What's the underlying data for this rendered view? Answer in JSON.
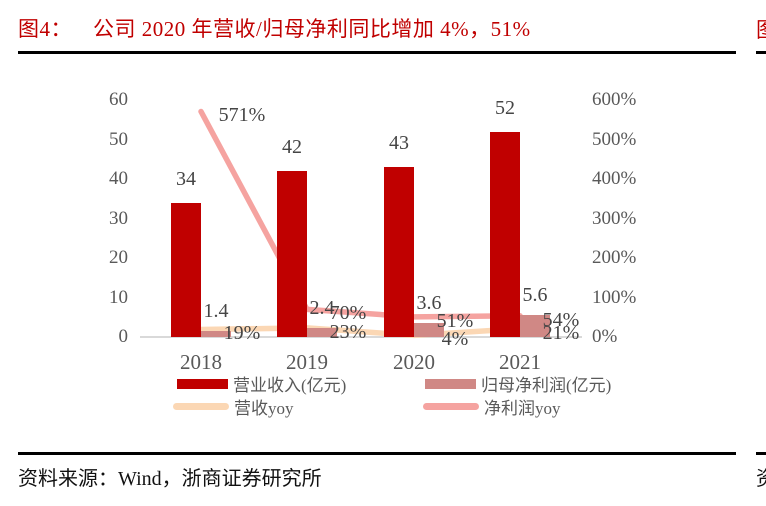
{
  "figure": {
    "label": "图4：",
    "caption": "公司 2020 年营收/归母净利同比增加 4%，51%"
  },
  "source": {
    "text": "资料来源：Wind，浙商证券研究所"
  },
  "adjacent_column_fragments": {
    "figure_label_char": "图",
    "source_char": "资"
  },
  "colors": {
    "title_red": "#c00000",
    "revenue_bar": "#c00000",
    "net_profit_bar": "#d08885",
    "revenue_yoy_line": "#fbd7b4",
    "net_profit_yoy_line": "#f5a3a0",
    "axis_text": "#595959",
    "data_label_text": "#454545",
    "baseline": "#d9d9d9",
    "divider": "#000000"
  },
  "legend": {
    "items": [
      {
        "label": "营业收入(亿元)",
        "swatch": "bar",
        "color": "#c00000"
      },
      {
        "label": "归母净利润(亿元)",
        "swatch": "bar",
        "color": "#d08885"
      },
      {
        "label": "营收yoy",
        "swatch": "line",
        "color": "#fbd7b4"
      },
      {
        "label": "净利润yoy",
        "swatch": "line",
        "color": "#f5a3a0"
      }
    ]
  },
  "chart_data": {
    "type": "bar+line combo (dual axis)",
    "categories": [
      "2018",
      "2019",
      "2020",
      "2021"
    ],
    "series": [
      {
        "name": "营业收入(亿元)",
        "type": "bar",
        "axis": "left",
        "color": "#c00000",
        "values": [
          34,
          42,
          43,
          52
        ],
        "labels": [
          "34",
          "42",
          "43",
          "52"
        ]
      },
      {
        "name": "归母净利润(亿元)",
        "type": "bar",
        "axis": "left",
        "color": "#d08885",
        "values": [
          1.4,
          2.4,
          3.6,
          5.6
        ],
        "labels": [
          "1.4",
          "2.4",
          "3.6",
          "5.6"
        ]
      },
      {
        "name": "营收yoy",
        "type": "line",
        "axis": "right",
        "color": "#fbd7b4",
        "values": [
          19,
          23,
          4,
          21
        ],
        "labels": [
          "19%",
          "23%",
          "4%",
          "21%"
        ]
      },
      {
        "name": "净利润yoy",
        "type": "line",
        "axis": "right",
        "color": "#f5a3a0",
        "values": [
          571,
          70,
          51,
          54
        ],
        "labels": [
          "571%",
          "70%",
          "51%",
          "54%"
        ]
      }
    ],
    "left_axis": {
      "min": 0,
      "max": 60,
      "ticks": [
        "60",
        "50",
        "40",
        "30",
        "20",
        "10",
        "0"
      ]
    },
    "right_axis": {
      "min_pct": 0,
      "max_pct": 600,
      "ticks": [
        "600%",
        "500%",
        "400%",
        "300%",
        "200%",
        "100%",
        "0%"
      ]
    },
    "grid": "none (light gray baseline only)",
    "legend_position": "bottom"
  }
}
